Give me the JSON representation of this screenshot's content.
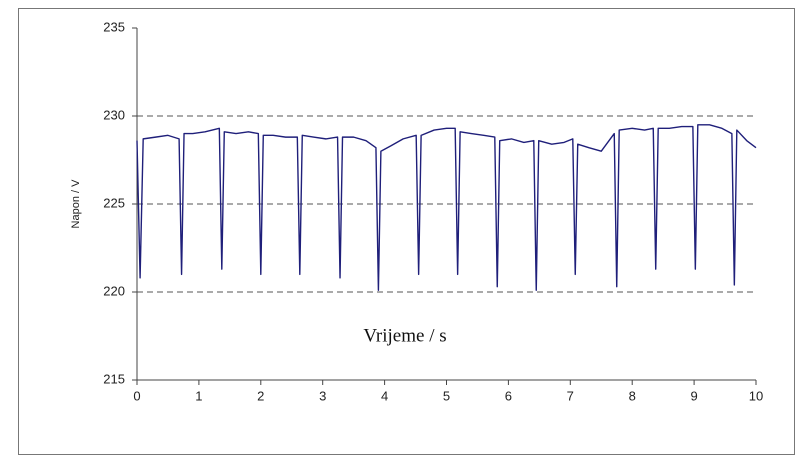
{
  "chart_data": {
    "type": "line",
    "ylabel": "Napon / V",
    "xlabel": "Vrijeme / s",
    "color": "#1f1f7a",
    "grid": true,
    "xlim": [
      0,
      10
    ],
    "xticks": [
      0,
      1,
      2,
      3,
      4,
      5,
      6,
      7,
      8,
      9,
      10
    ],
    "ylim": [
      215,
      235
    ],
    "yticks": [
      215,
      220,
      225,
      230,
      235
    ],
    "x": [
      0,
      0.05,
      0.1,
      0.3,
      0.5,
      0.68,
      0.72,
      0.76,
      0.9,
      1.1,
      1.33,
      1.37,
      1.41,
      1.6,
      1.8,
      1.96,
      2.0,
      2.04,
      2.2,
      2.4,
      2.59,
      2.63,
      2.67,
      2.85,
      3.05,
      3.24,
      3.28,
      3.32,
      3.5,
      3.7,
      3.86,
      3.9,
      3.94,
      4.1,
      4.3,
      4.51,
      4.55,
      4.59,
      4.8,
      5.0,
      5.14,
      5.18,
      5.22,
      5.4,
      5.6,
      5.78,
      5.82,
      5.86,
      6.05,
      6.25,
      6.41,
      6.45,
      6.49,
      6.7,
      6.9,
      7.04,
      7.08,
      7.12,
      7.3,
      7.5,
      7.71,
      7.75,
      7.79,
      8.0,
      8.2,
      8.34,
      8.38,
      8.42,
      8.6,
      8.8,
      8.98,
      9.02,
      9.06,
      9.25,
      9.45,
      9.61,
      9.65,
      9.69,
      9.85,
      10
    ],
    "values": [
      228.6,
      220.8,
      228.7,
      228.8,
      228.9,
      228.7,
      221.0,
      229.0,
      229.0,
      229.1,
      229.3,
      221.3,
      229.1,
      229.0,
      229.1,
      229.0,
      221.0,
      228.9,
      228.9,
      228.8,
      228.8,
      221.0,
      228.9,
      228.8,
      228.7,
      228.8,
      220.8,
      228.8,
      228.8,
      228.6,
      228.2,
      220.1,
      228.0,
      228.3,
      228.7,
      228.9,
      221.0,
      228.9,
      229.2,
      229.3,
      229.3,
      221.0,
      229.1,
      229.0,
      228.9,
      228.8,
      220.3,
      228.6,
      228.7,
      228.5,
      228.6,
      220.1,
      228.6,
      228.4,
      228.5,
      228.7,
      221.0,
      228.4,
      228.2,
      228.0,
      229.0,
      220.3,
      229.2,
      229.3,
      229.2,
      229.3,
      221.3,
      229.3,
      229.3,
      229.4,
      229.4,
      221.3,
      229.5,
      229.5,
      229.3,
      229.0,
      220.4,
      229.2,
      228.6,
      228.2
    ]
  }
}
